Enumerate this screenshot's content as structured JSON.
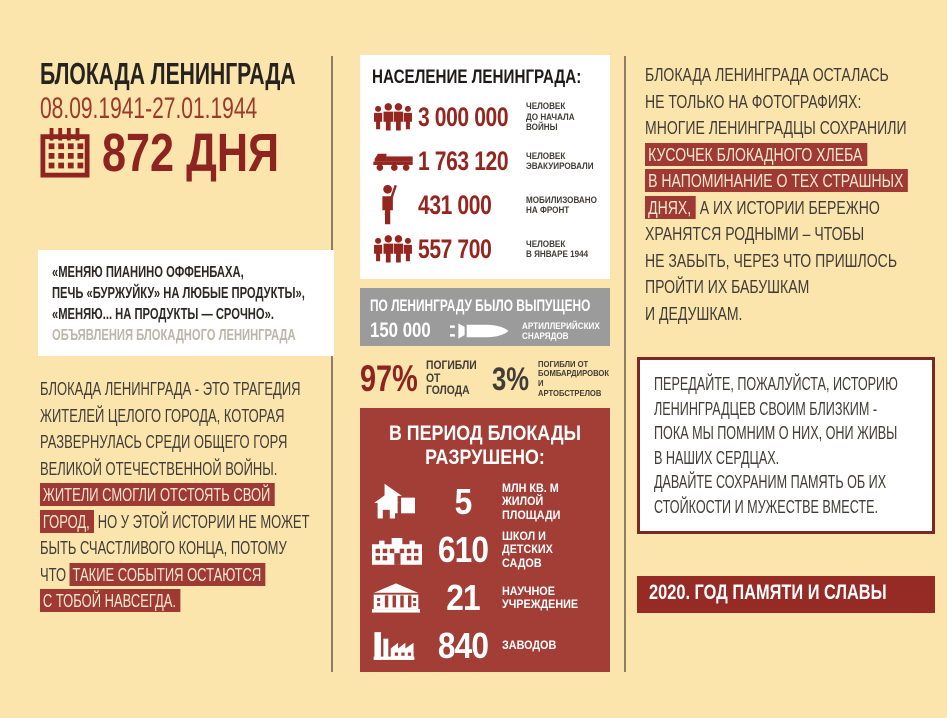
{
  "poster": {
    "left": {
      "title": "БЛОКАДА ЛЕНИНГРАДА",
      "dates": "08.09.1941-27.01.1944",
      "duration": "872 ДНЯ",
      "duration_icon": "calendar-icon",
      "quote_lines": [
        "«МЕНЯЮ ПИАНИНО ОФФЕНБАХА,",
        "ПЕЧЬ «БУРЖУЙКУ» НА ЛЮБЫЕ ПРОДУКТЫ»,",
        "«МЕНЯЮ... НА ПРОДУКТЫ — СРОЧНО»."
      ],
      "quote_attribution": "ОБЪЯВЛЕНИЯ БЛОКАДНОГО ЛЕНИНГРАДА",
      "paragraph": [
        [
          {
            "t": "БЛОКАДА ЛЕНИНГРАДА - ЭТО ТРАГЕДИЯ"
          }
        ],
        [
          {
            "t": "ЖИТЕЛЕЙ ЦЕЛОГО ГОРОДА, КОТОРАЯ"
          }
        ],
        [
          {
            "t": "РАЗВЕРНУЛАСЬ СРЕДИ ОБЩЕГО ГОРЯ"
          }
        ],
        [
          {
            "t": "ВЕЛИКОЙ ОТЕЧЕСТВЕННОЙ ВОЙНЫ."
          }
        ],
        [
          {
            "t": "ЖИТЕЛИ СМОГЛИ ОТСТОЯТЬ СВОЙ",
            "hl": true
          }
        ],
        [
          {
            "t": "ГОРОД,",
            "hl": true
          },
          {
            "t": " НО У ЭТОЙ ИСТОРИИ НЕ МОЖЕТ"
          }
        ],
        [
          {
            "t": "БЫТЬ СЧАСТЛИВОГО КОНЦА, ПОТОМУ"
          }
        ],
        [
          {
            "t": "ЧТО "
          },
          {
            "t": "ТАКИЕ СОБЫТИЯ ОСТАЮТСЯ",
            "hl": true
          }
        ],
        [
          {
            "t": "С ТОБОЙ НАВСЕГДА.",
            "hl": true
          }
        ]
      ]
    },
    "population": {
      "title": "НАСЕЛЕНИЕ ЛЕНИНГРАДА:",
      "stats": [
        {
          "icon": "people-group-icon",
          "value": "3 000 000",
          "label": "ЧЕЛОВЕК\nДО НАЧАЛА ВОЙНЫ"
        },
        {
          "icon": "truck-icon",
          "value": "1 763 120",
          "label": "ЧЕЛОВЕК\nЭВАКУИРОВАЛИ"
        },
        {
          "icon": "soldier-icon",
          "value": "431 000",
          "label": "МОБИЛИЗОВАНО\nНА ФРОНТ"
        },
        {
          "icon": "people-group-icon",
          "value": "557 700",
          "label": "ЧЕЛОВЕК\nВ ЯНВАРЕ 1944"
        }
      ]
    },
    "shelling": {
      "title": "ПО ЛЕНИНГРАДУ БЫЛО ВЫПУЩЕНО",
      "value": "150 000",
      "icon": "artillery-shell-icon",
      "label": "АРТИЛЛЕРИЙСКИХ\nСНАРЯДОВ"
    },
    "deaths": [
      {
        "value": "97%",
        "label": "ПОГИБЛИ\nОТ ГОЛОДА"
      },
      {
        "value": "3%",
        "label": "ПОГИБЛИ ОТ\nБОМБАРДИРОВОК\nИ АРТОБСТРЕЛОВ"
      }
    ],
    "destroyed": {
      "title_lines": [
        "В ПЕРИОД БЛОКАДЫ",
        "РАЗРУШЕНО:"
      ],
      "stats": [
        {
          "icon": "houses-icon",
          "value": "5",
          "label": "МЛН КВ. М\nЖИЛОЙ ПЛОЩАДИ"
        },
        {
          "icon": "school-icon",
          "value": "610",
          "label": "ШКОЛ И ДЕТСКИХ\nСАДОВ"
        },
        {
          "icon": "academy-icon",
          "value": "21",
          "label": "НАУЧНОЕ\nУЧРЕЖДЕНИЕ"
        },
        {
          "icon": "factory-icon",
          "value": "840",
          "label": "ЗАВОДОВ"
        }
      ]
    },
    "right": {
      "paragraph": [
        [
          {
            "t": "БЛОКАДА ЛЕНИНГРАДА ОСТАЛАСЬ"
          }
        ],
        [
          {
            "t": "НЕ ТОЛЬКО НА ФОТОГРАФИЯХ:"
          }
        ],
        [
          {
            "t": "МНОГИЕ ЛЕНИНГРАДЦЫ СОХРАНИЛИ"
          }
        ],
        [
          {
            "t": "КУСОЧЕК БЛОКАДНОГО ХЛЕБА",
            "hl": true
          }
        ],
        [
          {
            "t": "В НАПОМИНАНИЕ О ТЕХ СТРАШНЫХ",
            "hl": true
          }
        ],
        [
          {
            "t": "ДНЯХ,",
            "hl": true
          },
          {
            "t": " А ИХ ИСТОРИИ БЕРЕЖНО"
          }
        ],
        [
          {
            "t": "ХРАНЯТСЯ РОДНЫМИ – ЧТОБЫ"
          }
        ],
        [
          {
            "t": "НЕ ЗАБЫТЬ, ЧЕРЕЗ ЧТО ПРИШЛОСЬ"
          }
        ],
        [
          {
            "t": "ПРОЙТИ ИХ БАБУШКАМ"
          }
        ],
        [
          {
            "t": "И ДЕДУШКАМ."
          }
        ]
      ],
      "memory_lines": [
        "ПЕРЕДАЙТЕ, ПОЖАЛУЙСТА, ИСТОРИЮ",
        "ЛЕНИНГРАДЦЕВ СВОИМ БЛИЗКИМ -",
        "ПОКА МЫ ПОМНИМ О НИХ, ОНИ ЖИВЫ",
        "В НАШИХ СЕРДЦАХ.",
        "ДАВАЙТЕ СОХРАНИМ ПАМЯТЬ ОБ ИХ",
        "СТОЙКОСТИ И МУЖЕСТВЕ ВМЕСТЕ."
      ],
      "banner": "2020. ГОД ПАМЯТИ И СЛАВЫ"
    },
    "colors": {
      "background": "#fbe5ad",
      "highlight": "#9e3a33",
      "deep_red": "#8d2420",
      "destroyed_box": "#a23e36",
      "banner": "#962b26",
      "gray_box": "#9b9b9b"
    }
  }
}
